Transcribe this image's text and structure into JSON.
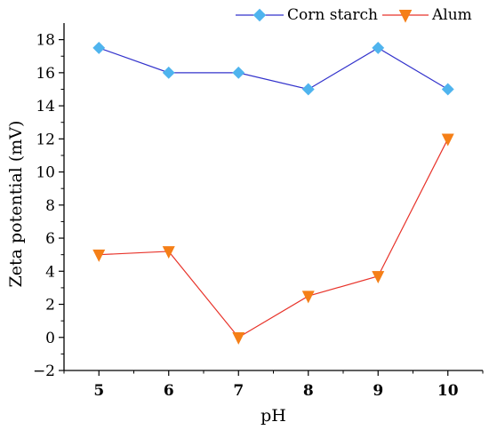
{
  "chart_data": {
    "type": "line",
    "title": "",
    "xlabel": "pH",
    "ylabel": "Zeta potential (mV)",
    "x": [
      5,
      6,
      7,
      8,
      9,
      10
    ],
    "x_tick_labels": [
      "5",
      "6",
      "7",
      "8",
      "9",
      "10"
    ],
    "xlim": [
      4.5,
      10.5
    ],
    "ylim": [
      -2,
      19
    ],
    "y_ticks": [
      -2,
      0,
      2,
      4,
      6,
      8,
      10,
      12,
      14,
      16,
      18
    ],
    "y_tick_labels": [
      "−2",
      "0",
      "2",
      "4",
      "6",
      "8",
      "10",
      "12",
      "14",
      "16",
      "18"
    ],
    "grid": false,
    "legend_position": "top-right",
    "series": [
      {
        "name": "Corn starch",
        "values": [
          17.5,
          16.0,
          16.0,
          15.0,
          17.5,
          15.0
        ],
        "line_color": "#3333cc",
        "marker_color": "#4fb4ee",
        "marker": "diamond"
      },
      {
        "name": "Alum",
        "values": [
          5.0,
          5.2,
          0.0,
          2.5,
          3.7,
          12.0
        ],
        "line_color": "#e8332a",
        "marker_color": "#f57f17",
        "marker": "triangle-down"
      }
    ]
  }
}
